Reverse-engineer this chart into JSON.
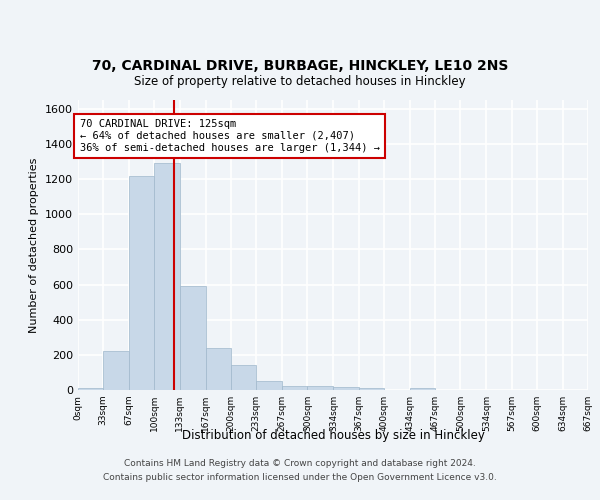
{
  "title_line1": "70, CARDINAL DRIVE, BURBAGE, HINCKLEY, LE10 2NS",
  "title_line2": "Size of property relative to detached houses in Hinckley",
  "xlabel": "Distribution of detached houses by size in Hinckley",
  "ylabel": "Number of detached properties",
  "bin_edges": [
    0,
    33,
    67,
    100,
    133,
    167,
    200,
    233,
    267,
    300,
    334,
    367,
    400,
    434,
    467,
    500,
    534,
    567,
    600,
    634,
    667
  ],
  "bar_heights": [
    10,
    220,
    1220,
    1290,
    590,
    240,
    140,
    50,
    25,
    20,
    15,
    10,
    0,
    10,
    0,
    0,
    0,
    0,
    0,
    0
  ],
  "bar_color": "#c8d8e8",
  "bar_edgecolor": "#a0b8cc",
  "property_size": 125,
  "annotation_title": "70 CARDINAL DRIVE: 125sqm",
  "annotation_line2": "← 64% of detached houses are smaller (2,407)",
  "annotation_line3": "36% of semi-detached houses are larger (1,344) →",
  "annotation_box_color": "#ffffff",
  "annotation_box_edgecolor": "#cc0000",
  "vline_color": "#cc0000",
  "ylim": [
    0,
    1650
  ],
  "yticks": [
    0,
    200,
    400,
    600,
    800,
    1000,
    1200,
    1400,
    1600
  ],
  "footer_line1": "Contains HM Land Registry data © Crown copyright and database right 2024.",
  "footer_line2": "Contains public sector information licensed under the Open Government Licence v3.0.",
  "background_color": "#f0f4f8",
  "grid_color": "#ffffff"
}
